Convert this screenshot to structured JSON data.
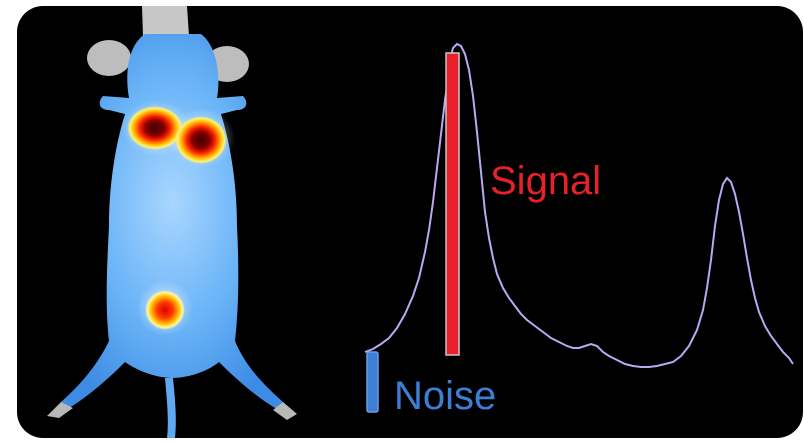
{
  "labels": {
    "signal": "Signal",
    "noise": "Noise"
  },
  "colors": {
    "background": "#000000",
    "frame": "#ffffff",
    "signal": "#e8202a",
    "noise": "#3d7fd6",
    "trace": "#b9a8f2",
    "mouse_body": "#5aa8f4",
    "hotspot_core": "#4a0000",
    "hotspot_mid": "#ff2a00",
    "hotspot_edge": "#ffe000"
  },
  "icons": {
    "image": "bioluminescence-mouse-image",
    "trace": "intensity-profile-trace"
  }
}
